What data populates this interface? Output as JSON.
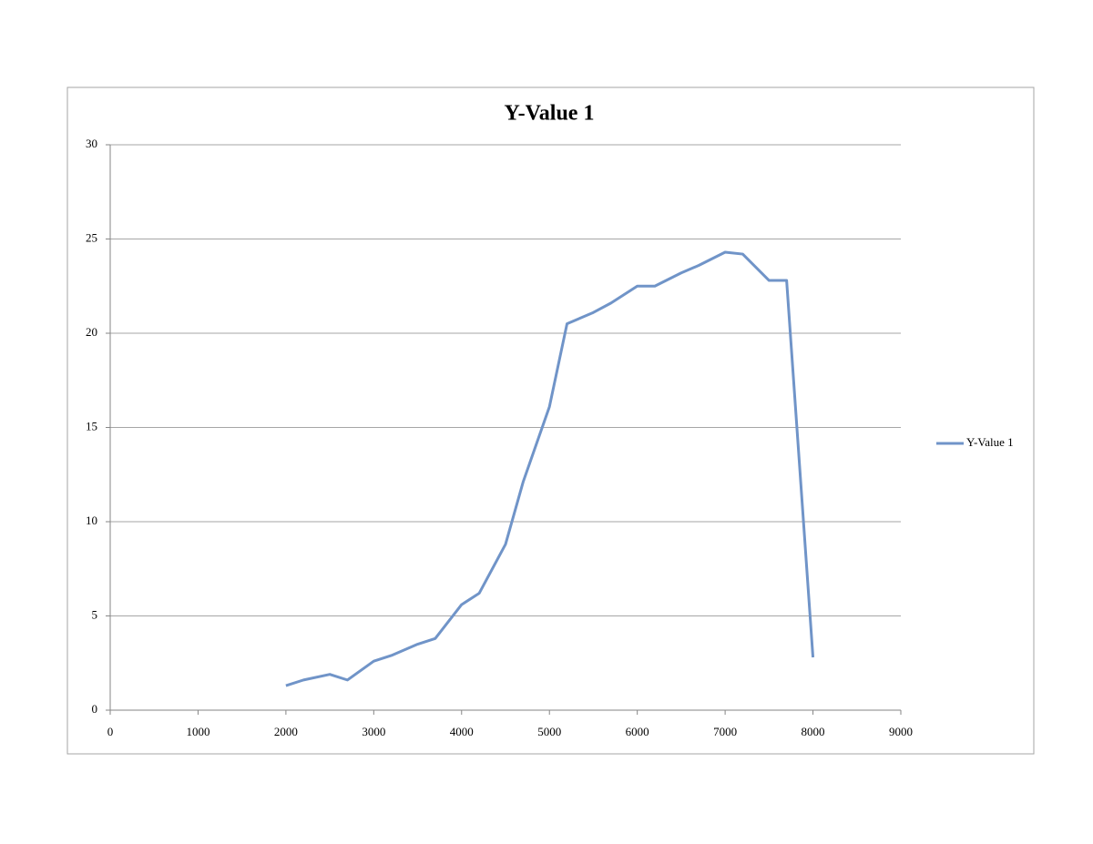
{
  "chart_data": {
    "type": "line",
    "title": "Y-Value 1",
    "x": [
      2000,
      2200,
      2500,
      2700,
      3000,
      3200,
      3500,
      3700,
      4000,
      4200,
      4500,
      4700,
      5000,
      5200,
      5500,
      5700,
      6000,
      6200,
      6500,
      6700,
      7000,
      7200,
      7500,
      7700,
      8000
    ],
    "series": [
      {
        "name": "Y-Value 1",
        "color": "#7094c8",
        "values": [
          1.3,
          1.6,
          1.9,
          1.6,
          2.6,
          2.9,
          3.5,
          3.8,
          5.6,
          6.2,
          8.8,
          12.1,
          16.1,
          20.5,
          21.1,
          21.6,
          22.5,
          22.5,
          23.2,
          23.6,
          24.3,
          24.2,
          22.8,
          22.8,
          2.8
        ]
      }
    ],
    "xlim": [
      0,
      9000
    ],
    "xticks": [
      0,
      1000,
      2000,
      3000,
      4000,
      5000,
      6000,
      7000,
      8000,
      9000
    ],
    "ylim": [
      0,
      30
    ],
    "yticks": [
      0,
      5,
      10,
      15,
      20,
      25,
      30
    ],
    "grid": true,
    "legend": "right"
  }
}
